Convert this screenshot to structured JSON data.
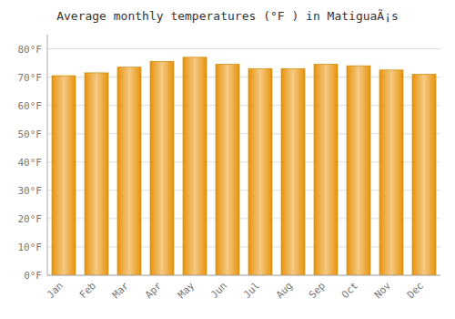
{
  "chart_data": {
    "type": "bar",
    "title": "Average monthly temperatures (°F ) in MatiguaÃ¡s",
    "categories": [
      "Jan",
      "Feb",
      "Mar",
      "Apr",
      "May",
      "Jun",
      "Jul",
      "Aug",
      "Sep",
      "Oct",
      "Nov",
      "Dec"
    ],
    "values": [
      70.5,
      71.5,
      73.5,
      75.5,
      77.0,
      74.5,
      73.0,
      73.0,
      74.5,
      74.0,
      72.5,
      71.0
    ],
    "color": "#E8920A",
    "ylim": [
      0,
      85
    ],
    "yticks": [
      {
        "value": 0,
        "label": "0°F"
      },
      {
        "value": 10,
        "label": "10°F"
      },
      {
        "value": 20,
        "label": "20°F"
      },
      {
        "value": 30,
        "label": "30°F"
      },
      {
        "value": 40,
        "label": "40°F"
      },
      {
        "value": 50,
        "label": "50°F"
      },
      {
        "value": 60,
        "label": "60°F"
      },
      {
        "value": 70,
        "label": "70°F"
      },
      {
        "value": 80,
        "label": "80°F"
      }
    ],
    "grid": true
  }
}
